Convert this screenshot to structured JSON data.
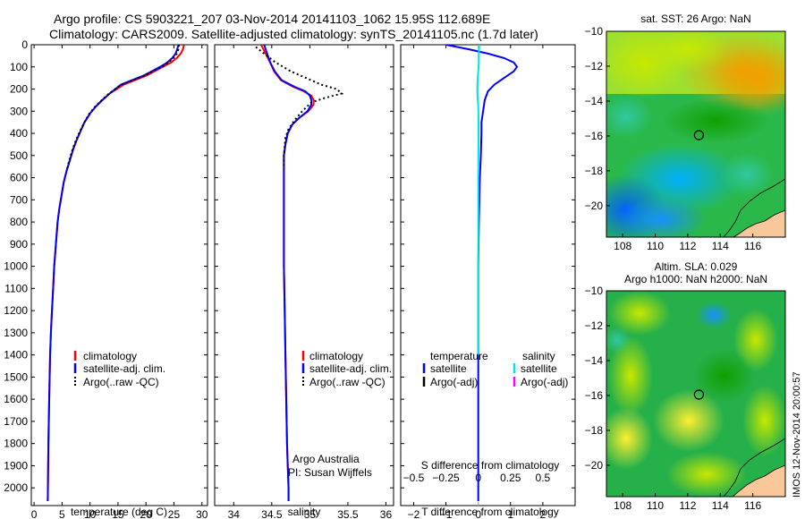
{
  "header": {
    "title_line1": "Argo profile: CS 5903221_207 03-Nov-2014 20141103_1062 15.95S 112.689E",
    "title_line2": "Climatology: CARS2009. Satellite-adjusted climatology: synTS_20141105.nc (1.7d later)"
  },
  "colors": {
    "climatology": "#ff0000",
    "satellite": "#0000ff",
    "argo": "#000000",
    "sal_satellite": "#00e5e5",
    "sal_argo": "#ff00ff"
  },
  "depth_axis": {
    "ylim": [
      2080,
      0
    ],
    "ticks": [
      0,
      100,
      200,
      300,
      400,
      500,
      600,
      700,
      800,
      900,
      1000,
      1100,
      1200,
      1300,
      1400,
      1500,
      1600,
      1700,
      1800,
      1900,
      2000
    ]
  },
  "legend_profile": {
    "climatology": "climatology",
    "satellite": "satellite-adj. clim.",
    "argo": "Argo(..raw -QC)"
  },
  "legend_diff": {
    "temperature_head": "temperature",
    "salinity_head": "salinity",
    "t_satellite": "satellite",
    "t_argo": "Argo(-adj)",
    "s_satellite": "satellite",
    "s_argo": "Argo(-adj)"
  },
  "credits": {
    "line1": "Argo Australia",
    "line2": "PI: Susan Wijffels"
  },
  "stamp": "IMOS 12-Nov-2014 20:00:57",
  "chart_data": [
    {
      "type": "line",
      "xlabel": "temperature (deg C)",
      "xlim": [
        -0.5,
        31
      ],
      "xticks": [
        0,
        5,
        10,
        15,
        20,
        25,
        30
      ],
      "series": [
        {
          "name": "climatology",
          "x": [
            26.8,
            26.6,
            26.2,
            25.5,
            24.5,
            23.0,
            21.5,
            20.0,
            18.0,
            16.0,
            13.5,
            12.2,
            11.0,
            10.0,
            9.0,
            8.3,
            7.6,
            7.0,
            6.4,
            5.8,
            5.3,
            4.9,
            4.5,
            4.2,
            3.9,
            3.6,
            3.4,
            3.2,
            3.0,
            2.85,
            2.7,
            2.55,
            2.45
          ],
          "y": [
            0,
            20,
            40,
            60,
            80,
            100,
            120,
            140,
            160,
            180,
            220,
            250,
            280,
            310,
            350,
            390,
            430,
            470,
            520,
            570,
            620,
            680,
            740,
            800,
            900,
            1000,
            1100,
            1200,
            1300,
            1400,
            1600,
            1800,
            2060
          ]
        },
        {
          "name": "satellite-adj. clim.",
          "x": [
            25.8,
            25.6,
            25.3,
            24.7,
            23.8,
            22.5,
            21.0,
            19.5,
            17.5,
            15.5,
            13.5,
            12.2,
            11.0,
            10.0,
            9.0,
            8.3,
            7.6,
            7.0,
            6.4,
            5.8,
            5.3,
            4.9,
            4.5,
            4.2,
            3.9,
            3.6,
            3.4,
            3.2,
            3.0,
            2.85,
            2.7,
            2.55,
            2.45
          ],
          "y": [
            0,
            20,
            40,
            60,
            80,
            100,
            120,
            140,
            160,
            180,
            220,
            250,
            280,
            310,
            350,
            390,
            430,
            470,
            520,
            570,
            620,
            680,
            740,
            800,
            900,
            1000,
            1100,
            1200,
            1300,
            1400,
            1600,
            1800,
            2060
          ]
        },
        {
          "name": "Argo(..raw -QC)",
          "x": [
            25.9,
            25.8,
            25.5,
            24.9,
            24.0,
            22.8,
            21.2,
            19.6,
            17.7,
            15.6,
            13.4,
            12.1,
            10.9,
            9.9,
            9.0,
            8.2,
            7.5,
            6.9,
            6.3,
            5.8
          ],
          "y": [
            0,
            20,
            40,
            60,
            80,
            100,
            120,
            140,
            160,
            180,
            220,
            250,
            280,
            310,
            350,
            390,
            430,
            470,
            520,
            570
          ]
        }
      ]
    },
    {
      "type": "line",
      "xlabel": "salinity",
      "xlim": [
        33.75,
        36.1
      ],
      "xticks": [
        34,
        34.5,
        35,
        35.5,
        36
      ],
      "xticklabels": [
        "34",
        "34.5",
        "35",
        "35.5",
        "36"
      ],
      "series": [
        {
          "name": "climatology",
          "x": [
            34.36,
            34.42,
            34.48,
            34.53,
            34.62,
            34.78,
            34.92,
            35.02,
            35.05,
            35.05,
            34.98,
            34.86,
            34.77,
            34.71,
            34.68,
            34.66,
            34.66,
            34.66,
            34.66,
            34.67,
            34.68,
            34.69,
            34.7,
            34.71,
            34.72,
            34.72
          ],
          "y": [
            0,
            40,
            80,
            120,
            160,
            190,
            210,
            230,
            250,
            270,
            300,
            330,
            360,
            400,
            450,
            500,
            600,
            800,
            1000,
            1200,
            1400,
            1600,
            1800,
            1900,
            2000,
            2060
          ]
        },
        {
          "name": "satellite-adj. clim.",
          "x": [
            34.4,
            34.44,
            34.48,
            34.54,
            34.63,
            34.8,
            34.94,
            35.0,
            35.02,
            35.02,
            34.97,
            34.86,
            34.77,
            34.71,
            34.68,
            34.66,
            34.66,
            34.66,
            34.66,
            34.67,
            34.68,
            34.69,
            34.7,
            34.71,
            34.72,
            34.72
          ],
          "y": [
            0,
            40,
            80,
            120,
            160,
            190,
            210,
            230,
            250,
            270,
            300,
            330,
            360,
            400,
            450,
            500,
            600,
            800,
            1000,
            1200,
            1400,
            1600,
            1800,
            1900,
            2000,
            2060
          ]
        },
        {
          "name": "Argo(..raw -QC)",
          "x": [
            34.29,
            34.4,
            34.55,
            34.75,
            34.95,
            35.15,
            35.35,
            35.42,
            35.2,
            35.02,
            34.9,
            34.8,
            34.72,
            34.68,
            34.67,
            34.66,
            34.66
          ],
          "y": [
            10,
            40,
            80,
            120,
            150,
            180,
            200,
            220,
            240,
            260,
            300,
            340,
            380,
            420,
            460,
            500,
            560
          ]
        }
      ]
    },
    {
      "type": "line",
      "xlabel": "T difference from climatology",
      "x2label": "S difference from climatology",
      "xlim": [
        -2.4,
        3.0
      ],
      "xticks": [
        -2,
        -1,
        0,
        1,
        2
      ],
      "x2lim": [
        -0.6,
        0.75
      ],
      "x2ticks": [
        -0.5,
        -0.25,
        0,
        0.25,
        0.5
      ],
      "x2ticklabels": [
        "−0.5",
        "−0.25",
        "0",
        "0.25",
        "0.5"
      ],
      "series": [
        {
          "name": "temperature satellite",
          "x": [
            -1.0,
            -0.3,
            0.3,
            0.8,
            1.1,
            1.2,
            1.1,
            0.8,
            0.5,
            0.3,
            0.2,
            0.15,
            0.1,
            0.1,
            0.08,
            0.05,
            0.02,
            0,
            0,
            0,
            0
          ],
          "y": [
            0,
            20,
            40,
            60,
            80,
            100,
            120,
            150,
            180,
            210,
            250,
            300,
            350,
            400,
            500,
            600,
            800,
            1000,
            1400,
            1800,
            2060
          ]
        },
        {
          "name": "salinity satellite",
          "x": [
            0.03,
            0.02,
            0.02,
            0.0,
            -0.02,
            -0.03,
            -0.02,
            0.0,
            0.01,
            0.01,
            0.0,
            0.0,
            0.0,
            0.0
          ],
          "y": [
            0,
            40,
            80,
            120,
            160,
            200,
            240,
            280,
            350,
            450,
            600,
            900,
            1200,
            1400
          ]
        }
      ]
    }
  ],
  "maps": [
    {
      "title": "sat. SST: 26 Argo: NaN",
      "xlim": [
        107.0,
        118.0
      ],
      "ylim": [
        -21.8,
        -10.0
      ],
      "xticks": [
        108,
        110,
        112,
        114,
        116
      ],
      "yticks": [
        -10,
        -12,
        -14,
        -16,
        -18,
        -20
      ],
      "yticklabels": [
        "−10",
        "−12",
        "−14",
        "−16",
        "−18",
        "−20"
      ],
      "marker": {
        "lon": 112.689,
        "lat": -15.95
      }
    },
    {
      "title_line1": "Altim. SLA: 0.029",
      "title_line2": "Argo h1000: NaN h2000: NaN",
      "xlim": [
        107.0,
        118.0
      ],
      "ylim": [
        -21.8,
        -10.0
      ],
      "xticks": [
        108,
        110,
        112,
        114,
        116
      ],
      "yticks": [
        -10,
        -12,
        -14,
        -16,
        -18,
        -20
      ],
      "yticklabels": [
        "−10",
        "−12",
        "−14",
        "−16",
        "−18",
        "−20"
      ],
      "marker": {
        "lon": 112.689,
        "lat": -15.95
      }
    }
  ]
}
